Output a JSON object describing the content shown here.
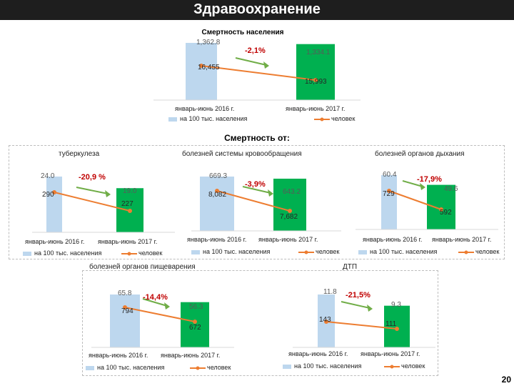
{
  "page": {
    "title": "Здравоохранение",
    "section_heading": "Смертность от:",
    "page_number": "20"
  },
  "chart_data": [
    {
      "id": "total",
      "type": "bar",
      "title": "Смертность населения",
      "categories": [
        "январь-июнь 2016 г.",
        "январь-июнь 2017 г."
      ],
      "series": [
        {
          "name": "на 100 тыс. населения",
          "kind": "bar",
          "values": [
            1362.8,
            1334.1
          ],
          "labels": [
            "1,362.8",
            "1,334.1"
          ]
        },
        {
          "name": "человек",
          "kind": "line",
          "values": [
            16455,
            15993
          ],
          "labels": [
            "16,455",
            "15,993"
          ]
        }
      ],
      "change": "-2,1%",
      "colors": {
        "bar_2016": "#bdd7ee",
        "bar_2017": "#00b050",
        "line": "#ed7d31",
        "arrow": "#70ad47",
        "change": "#c00000"
      }
    },
    {
      "id": "tb",
      "type": "bar",
      "title": "туберкулеза",
      "categories": [
        "январь-июнь 2016 г.",
        "январь-июнь 2017 г."
      ],
      "series": [
        {
          "name": "на 100 тыс. населения",
          "kind": "bar",
          "values": [
            24.0,
            19.0
          ],
          "labels": [
            "24.0",
            "19.0"
          ]
        },
        {
          "name": "человек",
          "kind": "line",
          "values": [
            290,
            227
          ],
          "labels": [
            "290",
            "227"
          ]
        }
      ],
      "change": "-20,9 %"
    },
    {
      "id": "circ",
      "type": "bar",
      "title": "болезней системы кровообращения",
      "categories": [
        "январь-июнь 2016 г.",
        "январь-июнь 2017 г."
      ],
      "series": [
        {
          "name": "на 100 тыс. населения",
          "kind": "bar",
          "values": [
            669.3,
            643.2
          ],
          "labels": [
            "669.3",
            "643.2"
          ]
        },
        {
          "name": "человек",
          "kind": "line",
          "values": [
            8082,
            7682
          ],
          "labels": [
            "8,082",
            "7,682"
          ]
        }
      ],
      "change": "-3,9%"
    },
    {
      "id": "resp",
      "type": "bar",
      "title": "болезней органов дыхания",
      "categories": [
        "январь-июнь 2016 г.",
        "январь-июнь 2017 г."
      ],
      "series": [
        {
          "name": "на 100 тыс. населения",
          "kind": "bar",
          "values": [
            60.4,
            49.6
          ],
          "labels": [
            "60.4",
            "49.6"
          ]
        },
        {
          "name": "человек",
          "kind": "line",
          "values": [
            729,
            592
          ],
          "labels": [
            "729",
            "592"
          ]
        }
      ],
      "change": "-17,9%"
    },
    {
      "id": "dig",
      "type": "bar",
      "title": "болезней органов пищеварения",
      "categories": [
        "январь-июнь 2016 г.",
        "январь-июнь 2017 г."
      ],
      "series": [
        {
          "name": "на 100 тыс. населения",
          "kind": "bar",
          "values": [
            65.8,
            56.3
          ],
          "labels": [
            "65.8",
            "56.3"
          ]
        },
        {
          "name": "человек",
          "kind": "line",
          "values": [
            794,
            672
          ],
          "labels": [
            "794",
            "672"
          ]
        }
      ],
      "change": "-14,4%"
    },
    {
      "id": "dtp",
      "type": "bar",
      "title": "ДТП",
      "categories": [
        "январь-июнь 2016 г.",
        "январь-июнь 2017 г."
      ],
      "series": [
        {
          "name": "на 100 тыс. населения",
          "kind": "bar",
          "values": [
            11.8,
            9.3
          ],
          "labels": [
            "11.8",
            "9.3"
          ]
        },
        {
          "name": "человек",
          "kind": "line",
          "values": [
            143,
            111
          ],
          "labels": [
            "143",
            "111"
          ]
        }
      ],
      "change": "-21,5%"
    }
  ]
}
